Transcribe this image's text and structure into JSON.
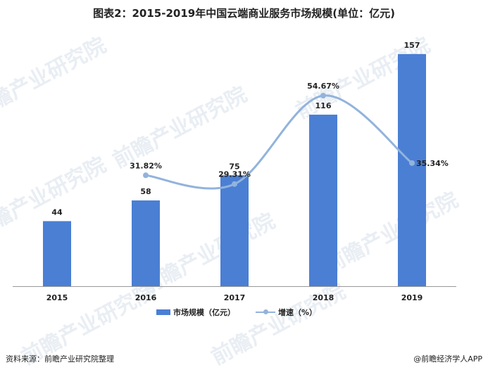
{
  "colors": {
    "bar": "#4a7fd4",
    "line": "#92b3dc",
    "axis": "#999999",
    "watermark": "#e9eef4"
  },
  "header": {
    "title": "图表2：2015-2019年中国云端商业服务市场规模(单位：亿元)"
  },
  "chart_data": {
    "type": "bar",
    "categories": [
      "2015",
      "2016",
      "2017",
      "2018",
      "2019"
    ],
    "series": [
      {
        "name": "市场规模（亿元）",
        "type": "bar",
        "values": [
          44,
          58,
          75,
          116,
          157
        ],
        "labels": [
          "44",
          "58",
          "75",
          "116",
          "157"
        ]
      },
      {
        "name": "增速（%）",
        "type": "line",
        "values": [
          null,
          31.82,
          29.31,
          54.67,
          35.34
        ],
        "labels": [
          "",
          "31.82%",
          "29.31%",
          "54.67%",
          "35.34%"
        ]
      }
    ],
    "ylim": [
      0,
      165
    ],
    "y2lim": [
      0,
      70
    ],
    "grid": false,
    "legend": "bottom"
  },
  "watermark": {
    "text": "前瞻产业研究院"
  },
  "footer": {
    "source": "资料来源：前瞻产业研究院整理",
    "brand": "@前瞻经济学人APP"
  }
}
